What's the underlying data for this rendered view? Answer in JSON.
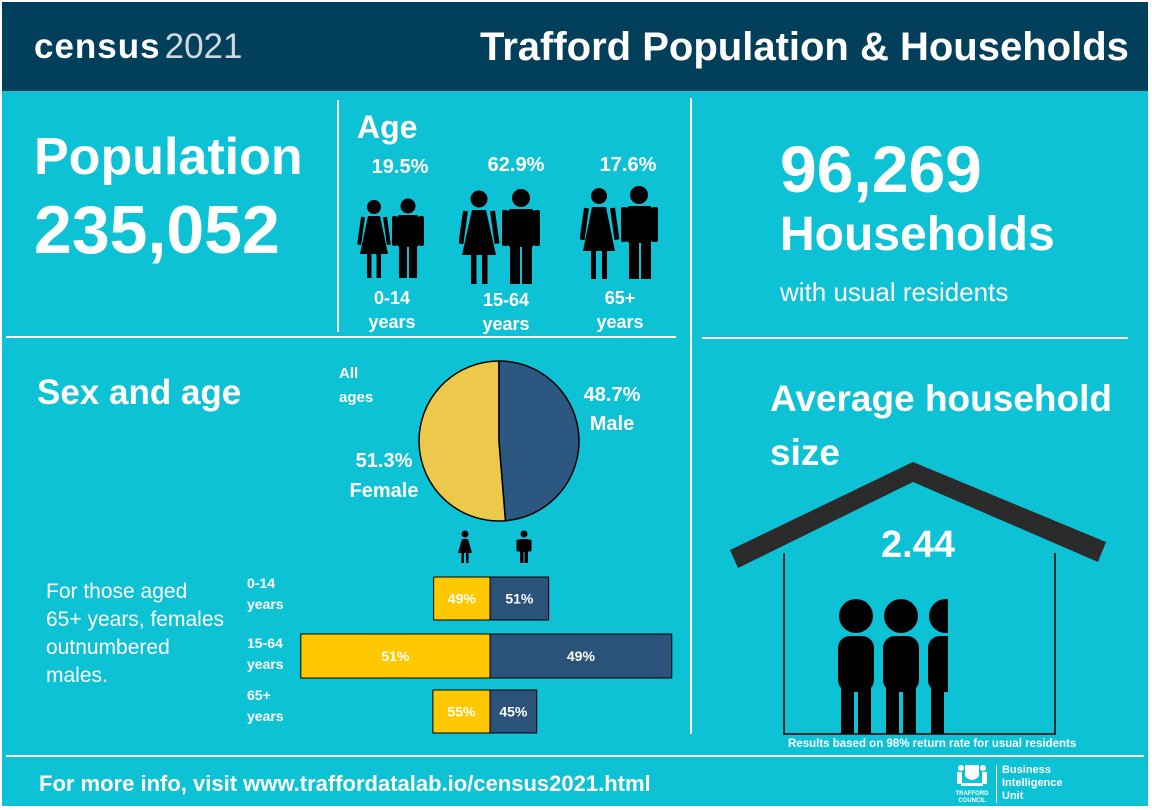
{
  "header": {
    "logo_word": "census",
    "logo_year": "2021",
    "title": "Trafford Population & Households"
  },
  "population": {
    "label": "Population",
    "value": "235,052"
  },
  "age": {
    "heading": "Age",
    "groups": [
      {
        "percent": "19.5%",
        "label_line1": "0-14",
        "label_line2": "years"
      },
      {
        "percent": "62.9%",
        "label_line1": "15-64",
        "label_line2": "years"
      },
      {
        "percent": "17.6%",
        "label_line1": "65+",
        "label_line2": "years"
      }
    ]
  },
  "households": {
    "value": "96,269",
    "label": "Households",
    "sublabel": "with usual residents"
  },
  "sex_age": {
    "heading": "Sex and age",
    "pie_label_line1": "All",
    "pie_label_line2": "ages",
    "male_pct": "48.7%",
    "male_label": "Male",
    "female_pct": "51.3%",
    "female_label": "Female",
    "pie": {
      "female": 51.3,
      "male": 48.7
    },
    "note_lines": [
      "For those aged",
      "65+ years, females",
      "outnumbered",
      "males."
    ],
    "bars": [
      {
        "label_line1": "0-14",
        "label_line2": "years",
        "female": 49,
        "male": 51,
        "female_label": "49%",
        "male_label": "51%",
        "share": 19.5
      },
      {
        "label_line1": "15-64",
        "label_line2": "years",
        "female": 51,
        "male": 49,
        "female_label": "51%",
        "male_label": "49%",
        "share": 62.9
      },
      {
        "label_line1": "65+",
        "label_line2": "years",
        "female": 55,
        "male": 45,
        "female_label": "55%",
        "male_label": "45%",
        "share": 17.6
      }
    ],
    "colors": {
      "female": "#ffc800",
      "male": "#2b5278",
      "pie_female": "#ecc94b",
      "pie_male": "#2c5781"
    }
  },
  "household_size": {
    "heading_line1": "Average household",
    "heading_line2": "size",
    "value": "2.44",
    "footnote": "Results based on 98% return rate for usual residents"
  },
  "footer": {
    "info": "For more info, visit www.traffordatalab.io/census2021.html",
    "council_name": "TRAFFORD",
    "council_sub": "COUNCIL",
    "unit_line1": "Business",
    "unit_line2": "Intelligence",
    "unit_line3": "Unit"
  }
}
